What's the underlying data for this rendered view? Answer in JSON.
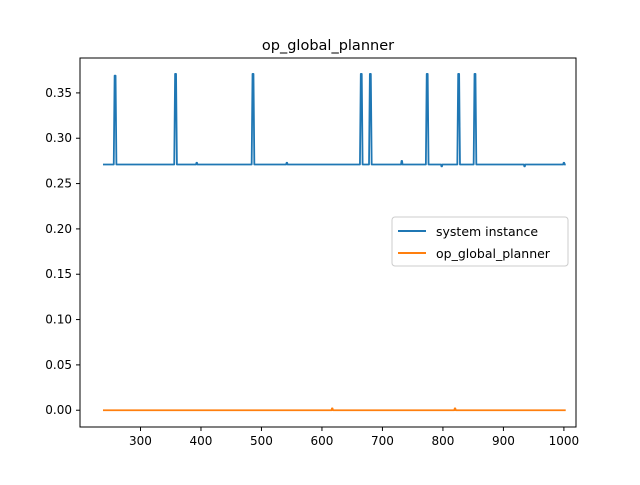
{
  "chart_data": {
    "type": "line",
    "title": "op_global_planner",
    "xlabel": "",
    "ylabel": "",
    "xlim": [
      200,
      1020
    ],
    "ylim": [
      -0.0185,
      0.3885
    ],
    "xticks": [
      300,
      400,
      500,
      600,
      700,
      800,
      900,
      1000
    ],
    "yticks": [
      0.0,
      0.05,
      0.1,
      0.15,
      0.2,
      0.25,
      0.3,
      0.35
    ],
    "ytick_labels": [
      "0.00",
      "0.05",
      "0.10",
      "0.15",
      "0.20",
      "0.25",
      "0.30",
      "0.35"
    ],
    "grid": false,
    "legend": {
      "placement": "center-right"
    },
    "series": [
      {
        "name": "system instance",
        "color": "#1f77b4",
        "baseline": 0.271,
        "x_range": [
          238,
          1003
        ],
        "spikes": [
          {
            "x": 258,
            "y": 0.369
          },
          {
            "x": 358,
            "y": 0.371
          },
          {
            "x": 486,
            "y": 0.371
          },
          {
            "x": 665,
            "y": 0.371
          },
          {
            "x": 680,
            "y": 0.371
          },
          {
            "x": 774,
            "y": 0.371
          },
          {
            "x": 826,
            "y": 0.371
          },
          {
            "x": 853,
            "y": 0.371
          }
        ],
        "small_bumps": [
          {
            "x": 393,
            "y": 0.273
          },
          {
            "x": 542,
            "y": 0.273
          },
          {
            "x": 732,
            "y": 0.275
          },
          {
            "x": 798,
            "y": 0.269
          },
          {
            "x": 935,
            "y": 0.269
          },
          {
            "x": 1000,
            "y": 0.273
          }
        ]
      },
      {
        "name": "op_global_planner",
        "color": "#ff7f0e",
        "baseline": 0.0,
        "x_range": [
          238,
          1003
        ],
        "small_bumps": [
          {
            "x": 617,
            "y": 0.002
          },
          {
            "x": 820,
            "y": 0.002
          }
        ]
      }
    ]
  }
}
